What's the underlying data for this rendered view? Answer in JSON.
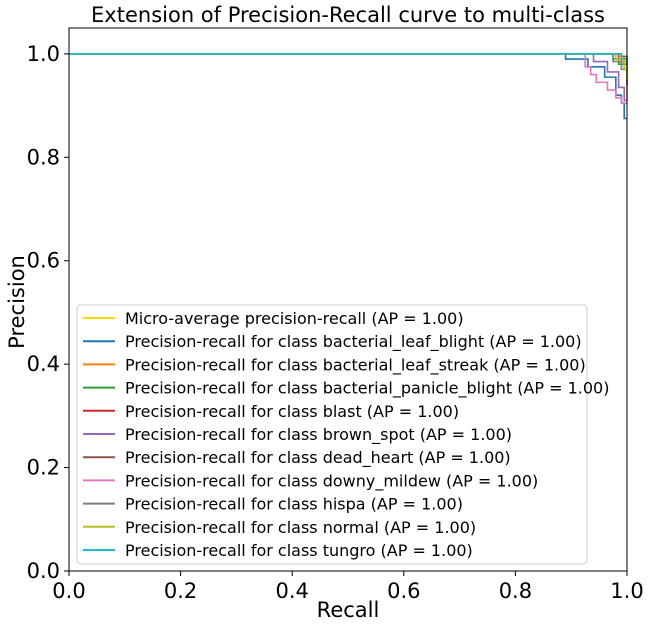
{
  "chart_data": {
    "type": "line",
    "title": "Extension of Precision-Recall curve to multi-class",
    "xlabel": "Recall",
    "ylabel": "Precision",
    "xlim": [
      0.0,
      1.0
    ],
    "ylim": [
      0.0,
      1.05
    ],
    "xticks": [
      "0.0",
      "0.2",
      "0.4",
      "0.6",
      "0.8",
      "1.0"
    ],
    "yticks": [
      "0.0",
      "0.2",
      "0.4",
      "0.6",
      "0.8",
      "1.0"
    ],
    "xtick_values": [
      0.0,
      0.2,
      0.4,
      0.6,
      0.8,
      1.0
    ],
    "ytick_values": [
      0.0,
      0.2,
      0.4,
      0.6,
      0.8,
      1.0
    ],
    "grid": false,
    "legend_position": "lower-left",
    "series": [
      {
        "name": "Micro-average precision-recall (AP = 1.00)",
        "color": "#FFD700",
        "points": [
          [
            0,
            1.0
          ],
          [
            0.985,
            1.0
          ],
          [
            0.985,
            0.995
          ],
          [
            0.995,
            0.995
          ],
          [
            0.995,
            0.99
          ],
          [
            1.0,
            0.99
          ],
          [
            1.0,
            0.975
          ]
        ]
      },
      {
        "name": "Precision-recall for class bacterial_leaf_blight (AP = 1.00)",
        "color": "#1f77b4",
        "points": [
          [
            0,
            1.0
          ],
          [
            0.89,
            1.0
          ],
          [
            0.89,
            0.99
          ],
          [
            0.93,
            0.99
          ],
          [
            0.93,
            0.975
          ],
          [
            0.96,
            0.975
          ],
          [
            0.96,
            0.955
          ],
          [
            0.98,
            0.955
          ],
          [
            0.98,
            0.92
          ],
          [
            0.99,
            0.92
          ],
          [
            0.99,
            0.905
          ],
          [
            0.995,
            0.905
          ],
          [
            0.995,
            0.875
          ],
          [
            1.0,
            0.875
          ]
        ]
      },
      {
        "name": "Precision-recall for class bacterial_leaf_streak (AP = 1.00)",
        "color": "#ff7f0e",
        "points": [
          [
            0,
            1.0
          ],
          [
            0.99,
            1.0
          ],
          [
            0.99,
            0.985
          ],
          [
            1.0,
            0.985
          ],
          [
            1.0,
            0.91
          ]
        ]
      },
      {
        "name": "Precision-recall for class bacterial_panicle_blight (AP = 1.00)",
        "color": "#2ca02c",
        "points": [
          [
            0,
            1.0
          ],
          [
            0.975,
            1.0
          ],
          [
            0.975,
            0.99
          ],
          [
            0.985,
            0.99
          ],
          [
            0.985,
            0.98
          ],
          [
            1.0,
            0.98
          ],
          [
            1.0,
            0.96
          ]
        ]
      },
      {
        "name": "Precision-recall for class blast (AP = 1.00)",
        "color": "#d62728",
        "points": [
          [
            0,
            1.0
          ],
          [
            0.985,
            1.0
          ],
          [
            0.985,
            0.99
          ],
          [
            0.995,
            0.99
          ],
          [
            0.995,
            0.97
          ],
          [
            1.0,
            0.97
          ],
          [
            1.0,
            0.94
          ]
        ]
      },
      {
        "name": "Precision-recall for class brown_spot (AP = 1.00)",
        "color": "#9467bd",
        "points": [
          [
            0,
            1.0
          ],
          [
            0.94,
            1.0
          ],
          [
            0.94,
            0.985
          ],
          [
            0.965,
            0.985
          ],
          [
            0.965,
            0.965
          ],
          [
            0.985,
            0.965
          ],
          [
            0.985,
            0.935
          ],
          [
            0.995,
            0.935
          ],
          [
            0.995,
            0.91
          ],
          [
            1.0,
            0.91
          ]
        ]
      },
      {
        "name": "Precision-recall for class dead_heart (AP = 1.00)",
        "color": "#8c564b",
        "points": [
          [
            0,
            1.0
          ],
          [
            0.99,
            1.0
          ],
          [
            0.99,
            0.995
          ],
          [
            1.0,
            0.995
          ],
          [
            1.0,
            0.98
          ]
        ]
      },
      {
        "name": "Precision-recall for class downy_mildew (AP = 1.00)",
        "color": "#e377c2",
        "points": [
          [
            0,
            1.0
          ],
          [
            0.925,
            1.0
          ],
          [
            0.925,
            0.975
          ],
          [
            0.935,
            0.975
          ],
          [
            0.935,
            0.96
          ],
          [
            0.945,
            0.96
          ],
          [
            0.945,
            0.945
          ],
          [
            0.965,
            0.945
          ],
          [
            0.965,
            0.93
          ],
          [
            0.98,
            0.93
          ],
          [
            0.98,
            0.915
          ],
          [
            0.99,
            0.915
          ],
          [
            0.99,
            0.905
          ],
          [
            1.0,
            0.905
          ]
        ]
      },
      {
        "name": "Precision-recall for class hispa (AP = 1.00)",
        "color": "#7f7f7f",
        "points": [
          [
            0,
            1.0
          ],
          [
            0.975,
            1.0
          ],
          [
            0.975,
            0.985
          ],
          [
            0.99,
            0.985
          ],
          [
            0.99,
            0.97
          ],
          [
            1.0,
            0.97
          ],
          [
            1.0,
            0.94
          ]
        ]
      },
      {
        "name": "Precision-recall for class normal (AP = 1.00)",
        "color": "#bcbd22",
        "points": [
          [
            0,
            1.0
          ],
          [
            0.98,
            1.0
          ],
          [
            0.98,
            0.99
          ],
          [
            0.995,
            0.99
          ],
          [
            0.995,
            0.97
          ],
          [
            1.0,
            0.97
          ],
          [
            1.0,
            0.95
          ]
        ]
      },
      {
        "name": "Precision-recall for class tungro (AP = 1.00)",
        "color": "#17becf",
        "points": [
          [
            0,
            1.0
          ],
          [
            0.99,
            1.0
          ],
          [
            0.99,
            0.99
          ],
          [
            1.0,
            0.99
          ],
          [
            1.0,
            0.975
          ]
        ]
      }
    ]
  }
}
